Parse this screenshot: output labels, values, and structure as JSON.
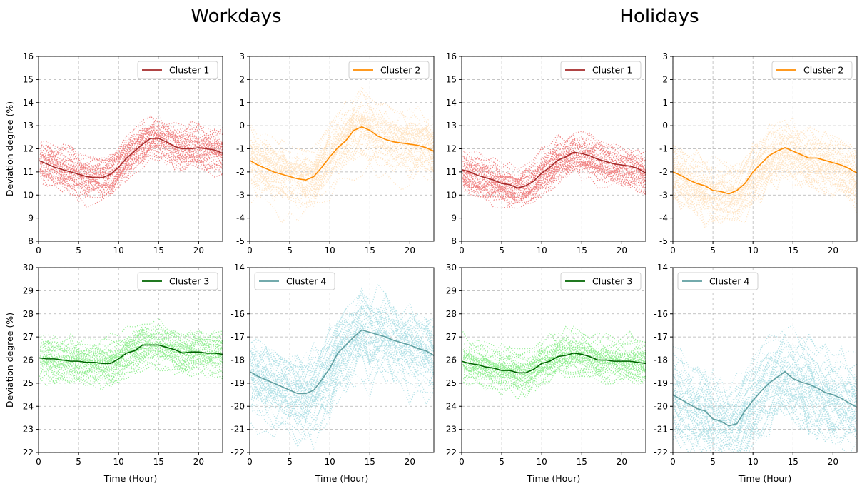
{
  "titles": {
    "left": "Workdays",
    "right": "Holidays"
  },
  "chart_data": {
    "type": "line",
    "x": [
      0,
      1,
      2,
      3,
      4,
      5,
      6,
      7,
      8,
      9,
      10,
      11,
      12,
      13,
      14,
      15,
      16,
      17,
      18,
      19,
      20,
      21,
      22,
      23
    ],
    "xlabel": "Time (Hour)",
    "ylabel": "Deviation degree (%)",
    "xlim": [
      0,
      23
    ],
    "xticks": [
      0,
      5,
      10,
      15,
      20
    ],
    "grid": true,
    "panels": [
      {
        "group": "Workdays",
        "name": "Cluster 1",
        "color": "#a52a2a",
        "dot_color": "#f08080",
        "ylim": [
          8,
          16
        ],
        "yticks": [
          8,
          9,
          10,
          11,
          12,
          13,
          14,
          15,
          16
        ],
        "legend": "top-right",
        "spread": 0.8,
        "values": [
          11.5,
          11.35,
          11.2,
          11.1,
          11.0,
          10.9,
          10.8,
          10.75,
          10.75,
          10.9,
          11.2,
          11.6,
          11.9,
          12.2,
          12.45,
          12.45,
          12.3,
          12.1,
          12.0,
          12.0,
          12.05,
          12.0,
          11.95,
          11.8
        ]
      },
      {
        "group": "Workdays",
        "name": "Cluster 2",
        "color": "#ff8c00",
        "dot_color": "#ffe4c4",
        "ylim": [
          -5,
          3
        ],
        "yticks": [
          -5,
          -4,
          -3,
          -2,
          -1,
          0,
          1,
          2,
          3
        ],
        "legend": "top-right",
        "spread": 1.1,
        "values": [
          -1.5,
          -1.7,
          -1.85,
          -2.0,
          -2.1,
          -2.2,
          -2.3,
          -2.35,
          -2.2,
          -1.8,
          -1.35,
          -0.95,
          -0.65,
          -0.2,
          -0.05,
          -0.2,
          -0.45,
          -0.6,
          -0.7,
          -0.75,
          -0.8,
          -0.85,
          -0.95,
          -1.1
        ]
      },
      {
        "group": "Holidays",
        "name": "Cluster 1",
        "color": "#a52a2a",
        "dot_color": "#f08080",
        "ylim": [
          8,
          16
        ],
        "yticks": [
          8,
          9,
          10,
          11,
          12,
          13,
          14,
          15,
          16
        ],
        "legend": "top-right",
        "spread": 0.8,
        "values": [
          11.1,
          11.0,
          10.85,
          10.75,
          10.65,
          10.5,
          10.45,
          10.3,
          10.4,
          10.6,
          10.95,
          11.2,
          11.5,
          11.65,
          11.85,
          11.8,
          11.7,
          11.55,
          11.45,
          11.35,
          11.3,
          11.25,
          11.15,
          10.95
        ]
      },
      {
        "group": "Holidays",
        "name": "Cluster 2",
        "color": "#ff8c00",
        "dot_color": "#ffe4c4",
        "ylim": [
          -5,
          3
        ],
        "yticks": [
          -5,
          -4,
          -3,
          -2,
          -1,
          0,
          1,
          2,
          3
        ],
        "legend": "top-right",
        "spread": 1.1,
        "values": [
          -2.0,
          -2.15,
          -2.35,
          -2.5,
          -2.6,
          -2.8,
          -2.85,
          -2.95,
          -2.8,
          -2.5,
          -2.0,
          -1.65,
          -1.3,
          -1.1,
          -0.95,
          -1.1,
          -1.25,
          -1.4,
          -1.4,
          -1.5,
          -1.6,
          -1.7,
          -1.85,
          -2.05
        ]
      },
      {
        "group": "Workdays",
        "name": "Cluster 3",
        "color": "#006400",
        "dot_color": "#90ee90",
        "ylim": [
          22,
          30
        ],
        "yticks": [
          22,
          23,
          24,
          25,
          26,
          27,
          28,
          29,
          30
        ],
        "legend": "top-right",
        "spread": 0.7,
        "values": [
          26.1,
          26.05,
          26.05,
          26.0,
          25.95,
          25.95,
          25.9,
          25.9,
          25.85,
          25.85,
          26.05,
          26.3,
          26.4,
          26.65,
          26.65,
          26.65,
          26.55,
          26.45,
          26.3,
          26.35,
          26.35,
          26.3,
          26.3,
          26.25
        ]
      },
      {
        "group": "Workdays",
        "name": "Cluster 4",
        "color": "#5f9ea0",
        "dot_color": "#b0e0e6",
        "ylim": [
          -22,
          -14
        ],
        "yticks": [
          -22,
          -21,
          -20,
          -19,
          -18,
          -17,
          -16,
          -14
        ],
        "legend": "top-left",
        "spread": 1.6,
        "values": [
          -18.5,
          -18.7,
          -18.85,
          -19.0,
          -19.15,
          -19.3,
          -19.45,
          -19.45,
          -19.3,
          -18.85,
          -18.35,
          -17.7,
          -17.35,
          -17.0,
          -16.7,
          -16.8,
          -16.9,
          -17.0,
          -17.15,
          -17.25,
          -17.35,
          -17.5,
          -17.6,
          -17.8
        ]
      },
      {
        "group": "Holidays",
        "name": "Cluster 3",
        "color": "#006400",
        "dot_color": "#90ee90",
        "ylim": [
          22,
          30
        ],
        "yticks": [
          22,
          23,
          24,
          25,
          26,
          27,
          28,
          29,
          30
        ],
        "legend": "top-right",
        "spread": 0.7,
        "values": [
          25.95,
          25.85,
          25.8,
          25.7,
          25.65,
          25.55,
          25.55,
          25.45,
          25.45,
          25.6,
          25.85,
          25.95,
          26.15,
          26.2,
          26.3,
          26.25,
          26.15,
          26.0,
          26.0,
          25.95,
          25.95,
          25.95,
          25.9,
          25.85
        ]
      },
      {
        "group": "Holidays",
        "name": "Cluster 4",
        "color": "#5f9ea0",
        "dot_color": "#b0e0e6",
        "ylim": [
          -22,
          -14
        ],
        "yticks": [
          -22,
          -21,
          -20,
          -19,
          -18,
          -17,
          -16,
          -14
        ],
        "legend": "top-left",
        "spread": 1.6,
        "values": [
          -19.5,
          -19.7,
          -19.9,
          -20.1,
          -20.2,
          -20.55,
          -20.65,
          -20.85,
          -20.75,
          -20.2,
          -19.75,
          -19.35,
          -19.0,
          -18.75,
          -18.5,
          -18.8,
          -18.95,
          -19.05,
          -19.2,
          -19.4,
          -19.5,
          -19.65,
          -19.85,
          -20.05
        ]
      }
    ]
  }
}
